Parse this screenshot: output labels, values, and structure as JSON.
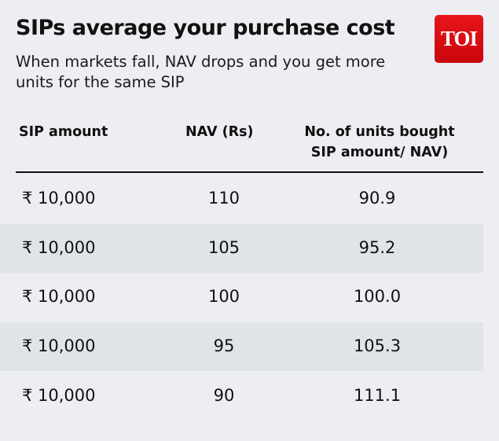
{
  "title": "SIPs average your purchase cost",
  "subtitle": "When markets fall, NAV drops and you get more units for the same SIP",
  "logo_text": "TOI",
  "chart_data": {
    "type": "table",
    "columns": [
      "SIP amount",
      "NAV (Rs)",
      "No. of units bought SIP amount/ NAV)"
    ],
    "column_lines": [
      [
        "SIP amount"
      ],
      [
        "NAV (Rs)"
      ],
      [
        "No. of units bought",
        "SIP amount/ NAV)"
      ]
    ],
    "rows": [
      {
        "amount": "₹  10,000",
        "nav": "110",
        "units": "90.9"
      },
      {
        "amount": "₹  10,000",
        "nav": "105",
        "units": "95.2"
      },
      {
        "amount": "₹  10,000",
        "nav": "100",
        "units": "100.0"
      },
      {
        "amount": "₹  10,000",
        "nav": "95",
        "units": "105.3"
      },
      {
        "amount": "₹  10,000",
        "nav": "90",
        "units": "111.1"
      }
    ]
  },
  "colors": {
    "background": "#eceef2",
    "alt_row": "#e0e3e8",
    "logo": "#e0101a"
  }
}
